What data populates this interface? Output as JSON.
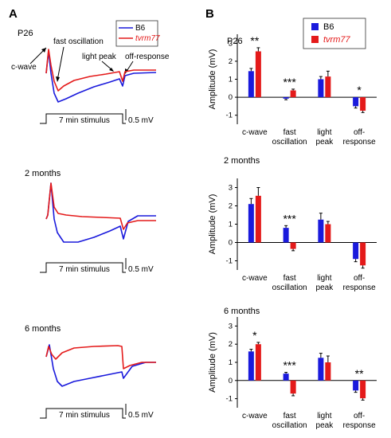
{
  "panels": {
    "a": "A",
    "b": "B"
  },
  "legend": {
    "b6": "B6",
    "tvrm77": "tvrm77"
  },
  "colors": {
    "b6": "#1a1adc",
    "tvrm77": "#e41a1a"
  },
  "panel_a": {
    "annotations": {
      "c_wave": "c-wave",
      "fast_oscillation": "fast oscillation",
      "light_peak": "light peak",
      "off_response": "off-response"
    },
    "rows": [
      {
        "title": "P26",
        "stimulus_label": "7 min stimulus",
        "scale_label": "0.5 mV"
      },
      {
        "title": "2 months",
        "stimulus_label": "7 min stimulus",
        "scale_label": "0.5 mV"
      },
      {
        "title": "6 months",
        "stimulus_label": "7 min stimulus",
        "scale_label": "0.5 mV"
      }
    ]
  },
  "chart_data": [
    {
      "type": "bar",
      "title": "P26",
      "ylabel": "Amplitude (mV)",
      "ylim": [
        -1.5,
        3.5
      ],
      "yticks": [
        -1,
        0,
        1,
        2,
        3
      ],
      "categories": [
        "c-wave",
        "fast\noscillation",
        "light\npeak",
        "off-\nresponse"
      ],
      "series": [
        {
          "name": "B6",
          "values": [
            1.45,
            -0.08,
            1.0,
            -0.5
          ],
          "errors": [
            0.15,
            0.06,
            0.15,
            0.1
          ]
        },
        {
          "name": "tvrm77",
          "values": [
            2.55,
            0.38,
            1.15,
            -0.75
          ],
          "errors": [
            0.2,
            0.07,
            0.3,
            0.1
          ]
        }
      ],
      "significance": [
        "**",
        "***",
        "",
        "*"
      ]
    },
    {
      "type": "bar",
      "title": "2 months",
      "ylabel": "Amplitude (mV)",
      "ylim": [
        -1.5,
        3.5
      ],
      "yticks": [
        -1,
        0,
        1,
        2,
        3
      ],
      "categories": [
        "c-wave",
        "fast\noscillation",
        "light\npeak",
        "off-\nresponse"
      ],
      "series": [
        {
          "name": "B6",
          "values": [
            2.1,
            0.8,
            1.25,
            -0.9
          ],
          "errors": [
            0.3,
            0.12,
            0.35,
            0.15
          ]
        },
        {
          "name": "tvrm77",
          "values": [
            2.55,
            -0.35,
            1.0,
            -1.25
          ],
          "errors": [
            0.45,
            0.1,
            0.15,
            0.15
          ]
        }
      ],
      "significance": [
        "",
        "***",
        "",
        ""
      ]
    },
    {
      "type": "bar",
      "title": "6 months",
      "ylabel": "Amplitude (mV)",
      "ylim": [
        -1.5,
        3.5
      ],
      "yticks": [
        -1,
        0,
        1,
        2,
        3
      ],
      "categories": [
        "c-wave",
        "fast\noscillation",
        "light\npeak",
        "off-\nresponse"
      ],
      "series": [
        {
          "name": "B6",
          "values": [
            1.6,
            0.38,
            1.25,
            -0.55
          ],
          "errors": [
            0.12,
            0.07,
            0.25,
            0.1
          ]
        },
        {
          "name": "tvrm77",
          "values": [
            2.0,
            -0.72,
            1.0,
            -0.98
          ],
          "errors": [
            0.1,
            0.12,
            0.35,
            0.1
          ]
        }
      ],
      "significance": [
        "*",
        "***",
        "",
        "**"
      ]
    }
  ]
}
